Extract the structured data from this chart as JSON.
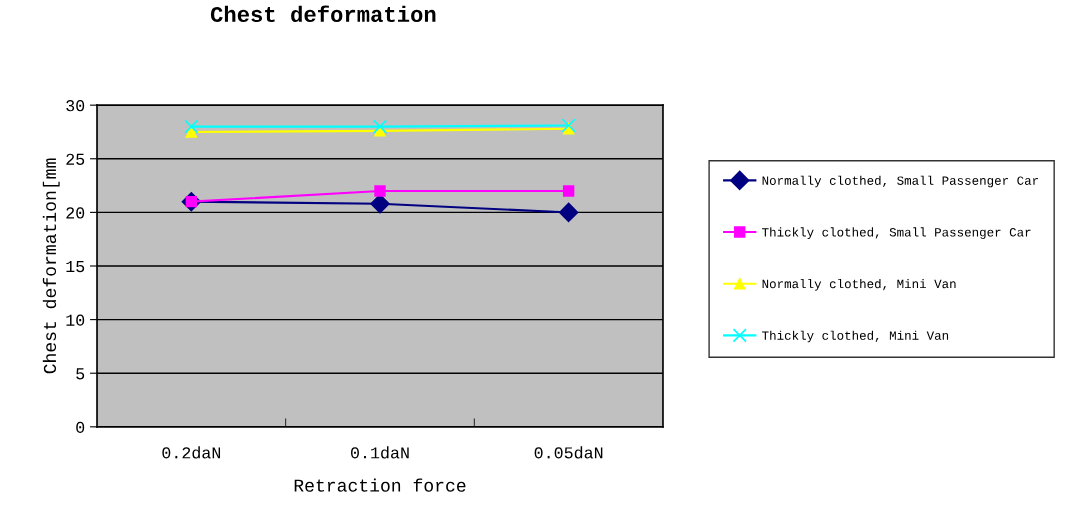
{
  "chart_data": {
    "type": "line",
    "title": "Chest deformation",
    "xlabel": "Retraction force",
    "ylabel": "Chest deformation[mm",
    "categories": [
      "0.2daN",
      "0.1daN",
      "0.05daN"
    ],
    "series": [
      {
        "name": "Normally clothed, Small Passenger Car",
        "color": "#000080",
        "marker": "diamond",
        "values": [
          21,
          20.8,
          20
        ]
      },
      {
        "name": "Thickly clothed, Small Passenger Car",
        "color": "#ff00ff",
        "marker": "square",
        "values": [
          21,
          22,
          22
        ]
      },
      {
        "name": "Normally clothed, Mini Van",
        "color": "#ffff00",
        "marker": "triangle",
        "values": [
          27.5,
          27.6,
          27.8
        ]
      },
      {
        "name": "Thickly clothed, Mini Van",
        "color": "#00ffff",
        "marker": "cross",
        "values": [
          28,
          28,
          28.1
        ]
      }
    ],
    "ylim": [
      0,
      30
    ],
    "yticks": [
      0,
      5,
      10,
      15,
      20,
      25,
      30
    ],
    "grid": "y",
    "legend": "right",
    "line_style": "solid"
  }
}
